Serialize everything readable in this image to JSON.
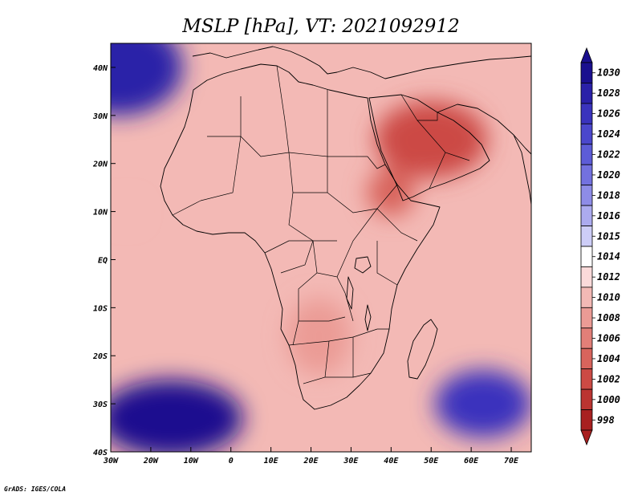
{
  "title": "MSLP [hPa], VT: 2021092912",
  "footer": "GrADS: IGES/COLA",
  "map": {
    "region": "Africa",
    "lon_range": [
      -30,
      75
    ],
    "lat_range": [
      -40,
      45
    ],
    "lat_ticks": [
      {
        "value": 40,
        "label": "40N"
      },
      {
        "value": 30,
        "label": "30N"
      },
      {
        "value": 20,
        "label": "20N"
      },
      {
        "value": 10,
        "label": "10N"
      },
      {
        "value": 0,
        "label": "EQ"
      },
      {
        "value": -10,
        "label": "10S"
      },
      {
        "value": -20,
        "label": "20S"
      },
      {
        "value": -30,
        "label": "30S"
      },
      {
        "value": -40,
        "label": "40S"
      }
    ],
    "lon_ticks": [
      {
        "value": -30,
        "label": "30W"
      },
      {
        "value": -20,
        "label": "20W"
      },
      {
        "value": -10,
        "label": "10W"
      },
      {
        "value": 0,
        "label": "0"
      },
      {
        "value": 10,
        "label": "10E"
      },
      {
        "value": 20,
        "label": "20E"
      },
      {
        "value": 30,
        "label": "30E"
      },
      {
        "value": 40,
        "label": "40E"
      },
      {
        "value": 50,
        "label": "50E"
      },
      {
        "value": 60,
        "label": "60E"
      },
      {
        "value": 70,
        "label": "70E"
      }
    ],
    "pressure_features": [
      {
        "name": "south-atlantic-high",
        "lon": -15,
        "lat": -33,
        "value": 1030,
        "spread_lon": 18,
        "spread_lat": 8
      },
      {
        "name": "indian-ocean-high",
        "lon": 63,
        "lat": -30,
        "value": 1026,
        "spread_lon": 12,
        "spread_lat": 7
      },
      {
        "name": "azores-high",
        "lon": -28,
        "lat": 40,
        "value": 1028,
        "spread_lon": 16,
        "spread_lat": 10
      },
      {
        "name": "arabian-low",
        "lon": 50,
        "lat": 25,
        "value": 1002,
        "spread_lon": 14,
        "spread_lat": 8
      },
      {
        "name": "red-sea-low",
        "lon": 40,
        "lat": 14,
        "value": 1004,
        "spread_lon": 6,
        "spread_lat": 5
      },
      {
        "name": "kalahari-low",
        "lon": 22,
        "lat": -16,
        "value": 1008,
        "spread_lon": 8,
        "spread_lat": 8
      },
      {
        "name": "atlantic-low-10n",
        "lon": -26,
        "lat": 10,
        "value": 1010,
        "spread_lon": 3,
        "spread_lat": 2
      }
    ]
  },
  "colorbar": {
    "levels": [
      {
        "label": "1030",
        "color": "#1a0f8f"
      },
      {
        "label": "1028",
        "color": "#2a20a8"
      },
      {
        "label": "1026",
        "color": "#3a33bd"
      },
      {
        "label": "1024",
        "color": "#4b47cc"
      },
      {
        "label": "1022",
        "color": "#5d5cd7"
      },
      {
        "label": "1020",
        "color": "#7371df"
      },
      {
        "label": "1018",
        "color": "#8e8ce7"
      },
      {
        "label": "1016",
        "color": "#acabef"
      },
      {
        "label": "1015",
        "color": "#cdcdf7"
      },
      {
        "label": "1014",
        "color": "#ffffff"
      },
      {
        "label": "1012",
        "color": "#fbdada"
      },
      {
        "label": "1010",
        "color": "#f3b9b5"
      },
      {
        "label": "1008",
        "color": "#eb9b95"
      },
      {
        "label": "1006",
        "color": "#e27f78"
      },
      {
        "label": "1004",
        "color": "#d8645c"
      },
      {
        "label": "1002",
        "color": "#cc4a44"
      },
      {
        "label": "1000",
        "color": "#bb3431"
      },
      {
        "label": "998",
        "color": "#a82020"
      }
    ],
    "top_arrow_color": "#1a0f8f",
    "bottom_arrow_color": "#a82020"
  }
}
